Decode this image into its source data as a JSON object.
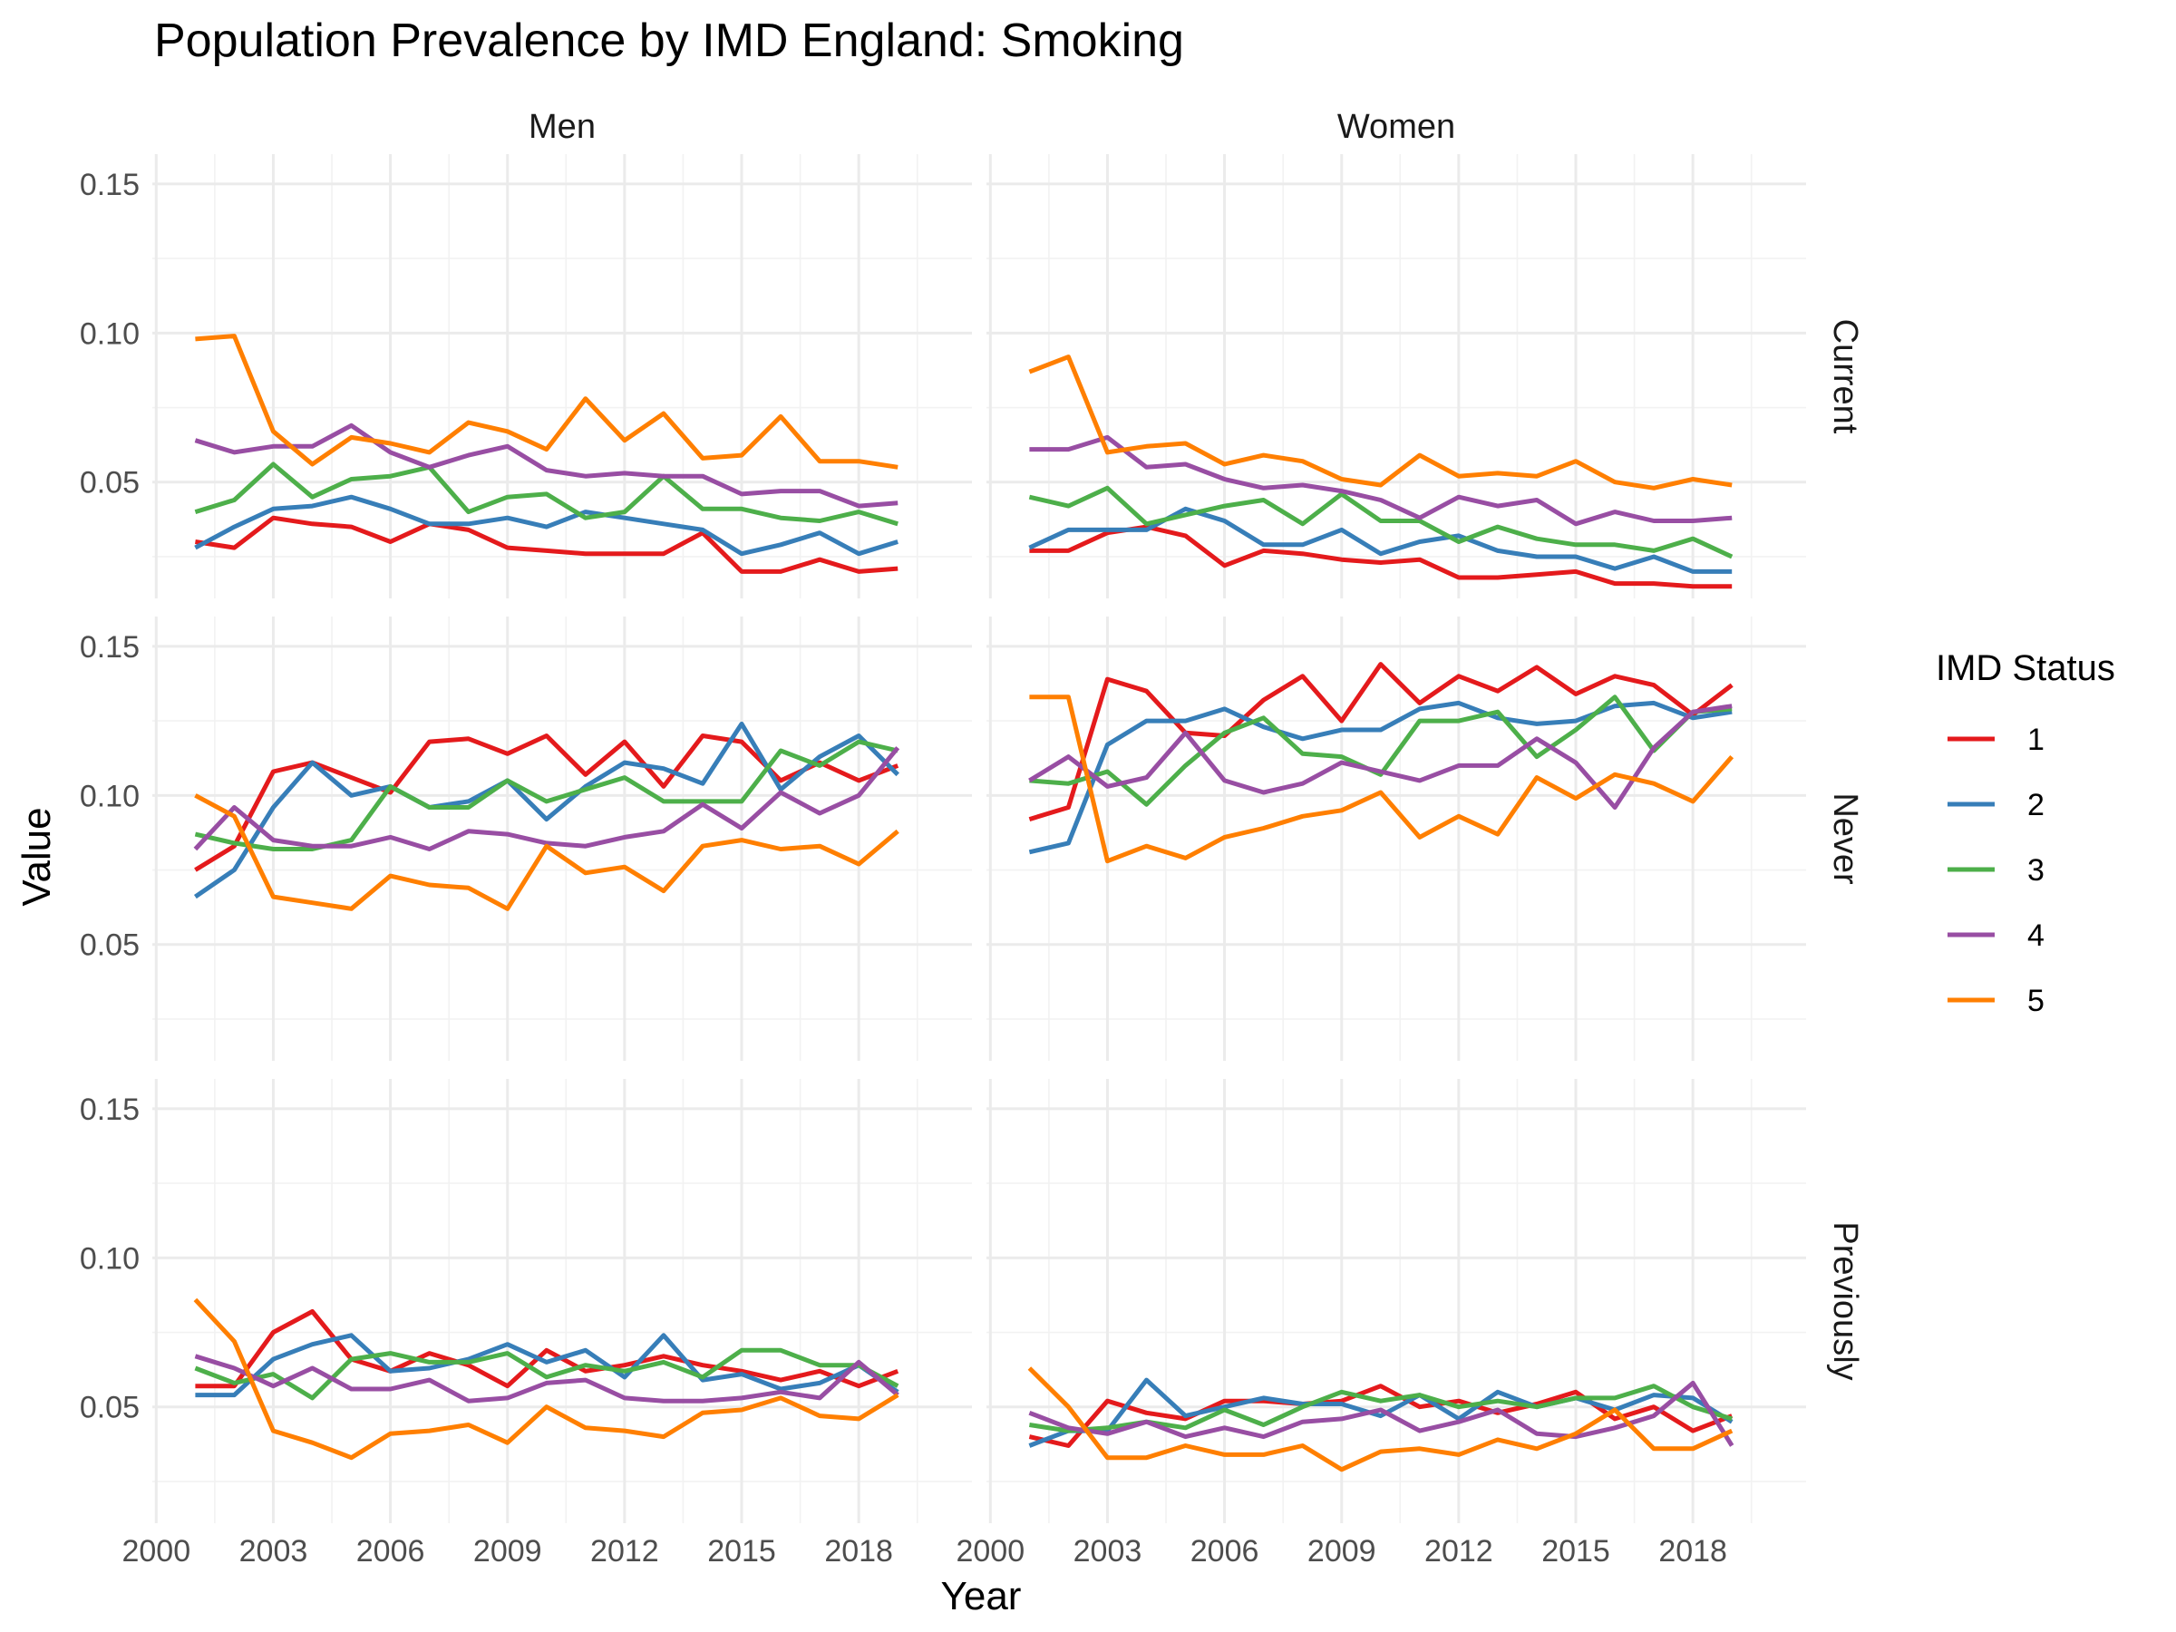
{
  "chart_data": {
    "type": "line",
    "title": "Population Prevalence by IMD England: Smoking",
    "xlabel": "Year",
    "ylabel": "Value",
    "legend_title": "IMD Status",
    "legend_position": "right",
    "facet_columns": [
      "Men",
      "Women"
    ],
    "facet_rows": [
      "Current",
      "Never",
      "Previously"
    ],
    "x_ticks": [
      "2000",
      "2003",
      "2006",
      "2009",
      "2012",
      "2015",
      "2018"
    ],
    "y_ticks": [
      "0.05",
      "0.10",
      "0.15"
    ],
    "xlim": [
      1999.9,
      2020.9
    ],
    "ylim": [
      0.011,
      0.16
    ],
    "grid": true,
    "x": [
      2001,
      2002,
      2003,
      2004,
      2005,
      2006,
      2007,
      2008,
      2009,
      2010,
      2011,
      2012,
      2013,
      2014,
      2015,
      2016,
      2017,
      2018,
      2019
    ],
    "series_colors": {
      "1": "#E41A1C",
      "2": "#377EB8",
      "3": "#4DAF4A",
      "4": "#984EA3",
      "5": "#FF7F00"
    },
    "legend": [
      {
        "label": "1",
        "color": "#E41A1C"
      },
      {
        "label": "2",
        "color": "#377EB8"
      },
      {
        "label": "3",
        "color": "#4DAF4A"
      },
      {
        "label": "4",
        "color": "#984EA3"
      },
      {
        "label": "5",
        "color": "#FF7F00"
      }
    ],
    "panels": [
      {
        "col": "Men",
        "row": "Current",
        "series": [
          {
            "name": "1",
            "values": [
              0.03,
              0.028,
              0.038,
              0.036,
              0.035,
              0.03,
              0.036,
              0.034,
              0.028,
              0.027,
              0.026,
              0.026,
              0.026,
              0.033,
              0.02,
              0.02,
              0.024,
              0.02,
              0.021
            ]
          },
          {
            "name": "2",
            "values": [
              0.028,
              0.035,
              0.041,
              0.042,
              0.045,
              0.041,
              0.036,
              0.036,
              0.038,
              0.035,
              0.04,
              0.038,
              0.036,
              0.034,
              0.026,
              0.029,
              0.033,
              0.026,
              0.03
            ]
          },
          {
            "name": "3",
            "values": [
              0.04,
              0.044,
              0.056,
              0.045,
              0.051,
              0.052,
              0.055,
              0.04,
              0.045,
              0.046,
              0.038,
              0.04,
              0.052,
              0.041,
              0.041,
              0.038,
              0.037,
              0.04,
              0.036
            ]
          },
          {
            "name": "4",
            "values": [
              0.064,
              0.06,
              0.062,
              0.062,
              0.069,
              0.06,
              0.055,
              0.059,
              0.062,
              0.054,
              0.052,
              0.053,
              0.052,
              0.052,
              0.046,
              0.047,
              0.047,
              0.042,
              0.043
            ]
          },
          {
            "name": "5",
            "values": [
              0.098,
              0.099,
              0.067,
              0.056,
              0.065,
              0.063,
              0.06,
              0.07,
              0.067,
              0.061,
              0.078,
              0.064,
              0.073,
              0.058,
              0.059,
              0.072,
              0.057,
              0.057,
              0.055
            ]
          }
        ]
      },
      {
        "col": "Women",
        "row": "Current",
        "series": [
          {
            "name": "1",
            "values": [
              0.027,
              0.027,
              0.033,
              0.035,
              0.032,
              0.022,
              0.027,
              0.026,
              0.024,
              0.023,
              0.024,
              0.018,
              0.018,
              0.019,
              0.02,
              0.016,
              0.016,
              0.015,
              0.015
            ]
          },
          {
            "name": "2",
            "values": [
              0.028,
              0.034,
              0.034,
              0.034,
              0.041,
              0.037,
              0.029,
              0.029,
              0.034,
              0.026,
              0.03,
              0.032,
              0.027,
              0.025,
              0.025,
              0.021,
              0.025,
              0.02,
              0.02
            ]
          },
          {
            "name": "3",
            "values": [
              0.045,
              0.042,
              0.048,
              0.036,
              0.039,
              0.042,
              0.044,
              0.036,
              0.046,
              0.037,
              0.037,
              0.03,
              0.035,
              0.031,
              0.029,
              0.029,
              0.027,
              0.031,
              0.025
            ]
          },
          {
            "name": "4",
            "values": [
              0.061,
              0.061,
              0.065,
              0.055,
              0.056,
              0.051,
              0.048,
              0.049,
              0.047,
              0.044,
              0.038,
              0.045,
              0.042,
              0.044,
              0.036,
              0.04,
              0.037,
              0.037,
              0.038
            ]
          },
          {
            "name": "5",
            "values": [
              0.087,
              0.092,
              0.06,
              0.062,
              0.063,
              0.056,
              0.059,
              0.057,
              0.051,
              0.049,
              0.059,
              0.052,
              0.053,
              0.052,
              0.057,
              0.05,
              0.048,
              0.051,
              0.049
            ]
          }
        ]
      },
      {
        "col": "Men",
        "row": "Never",
        "series": [
          {
            "name": "1",
            "values": [
              0.075,
              0.083,
              0.108,
              0.111,
              0.106,
              0.101,
              0.118,
              0.119,
              0.114,
              0.12,
              0.107,
              0.118,
              0.103,
              0.12,
              0.118,
              0.105,
              0.111,
              0.105,
              0.11
            ]
          },
          {
            "name": "2",
            "values": [
              0.066,
              0.075,
              0.096,
              0.111,
              0.1,
              0.103,
              0.096,
              0.098,
              0.105,
              0.092,
              0.103,
              0.111,
              0.109,
              0.104,
              0.124,
              0.102,
              0.113,
              0.12,
              0.107
            ]
          },
          {
            "name": "3",
            "values": [
              0.087,
              0.084,
              0.082,
              0.082,
              0.085,
              0.103,
              0.096,
              0.096,
              0.105,
              0.098,
              0.102,
              0.106,
              0.098,
              0.098,
              0.098,
              0.115,
              0.11,
              0.118,
              0.115
            ]
          },
          {
            "name": "4",
            "values": [
              0.082,
              0.096,
              0.085,
              0.083,
              0.083,
              0.086,
              0.082,
              0.088,
              0.087,
              0.084,
              0.083,
              0.086,
              0.088,
              0.097,
              0.089,
              0.101,
              0.094,
              0.1,
              0.116
            ]
          },
          {
            "name": "5",
            "values": [
              0.1,
              0.093,
              0.066,
              0.064,
              0.062,
              0.073,
              0.07,
              0.069,
              0.062,
              0.083,
              0.074,
              0.076,
              0.068,
              0.083,
              0.085,
              0.082,
              0.083,
              0.077,
              0.088
            ]
          }
        ]
      },
      {
        "col": "Women",
        "row": "Never",
        "series": [
          {
            "name": "1",
            "values": [
              0.092,
              0.096,
              0.139,
              0.135,
              0.121,
              0.12,
              0.132,
              0.14,
              0.125,
              0.144,
              0.131,
              0.14,
              0.135,
              0.143,
              0.134,
              0.14,
              0.137,
              0.127,
              0.137
            ]
          },
          {
            "name": "2",
            "values": [
              0.081,
              0.084,
              0.117,
              0.125,
              0.125,
              0.129,
              0.123,
              0.119,
              0.122,
              0.122,
              0.129,
              0.131,
              0.126,
              0.124,
              0.125,
              0.13,
              0.131,
              0.126,
              0.128
            ]
          },
          {
            "name": "3",
            "values": [
              0.105,
              0.104,
              0.108,
              0.097,
              0.11,
              0.121,
              0.126,
              0.114,
              0.113,
              0.107,
              0.125,
              0.125,
              0.128,
              0.113,
              0.122,
              0.133,
              0.115,
              0.128,
              0.129
            ]
          },
          {
            "name": "4",
            "values": [
              0.105,
              0.113,
              0.103,
              0.106,
              0.121,
              0.105,
              0.101,
              0.104,
              0.111,
              0.108,
              0.105,
              0.11,
              0.11,
              0.119,
              0.111,
              0.096,
              0.116,
              0.128,
              0.13
            ]
          },
          {
            "name": "5",
            "values": [
              0.133,
              0.133,
              0.078,
              0.083,
              0.079,
              0.086,
              0.089,
              0.093,
              0.095,
              0.101,
              0.086,
              0.093,
              0.087,
              0.106,
              0.099,
              0.107,
              0.104,
              0.098,
              0.113
            ]
          }
        ]
      },
      {
        "col": "Men",
        "row": "Previously",
        "series": [
          {
            "name": "1",
            "values": [
              0.057,
              0.057,
              0.075,
              0.082,
              0.066,
              0.062,
              0.068,
              0.064,
              0.057,
              0.069,
              0.062,
              0.064,
              0.067,
              0.064,
              0.062,
              0.059,
              0.062,
              0.057,
              0.062
            ]
          },
          {
            "name": "2",
            "values": [
              0.054,
              0.054,
              0.066,
              0.071,
              0.074,
              0.062,
              0.063,
              0.066,
              0.071,
              0.065,
              0.069,
              0.06,
              0.074,
              0.059,
              0.061,
              0.056,
              0.058,
              0.064,
              0.055
            ]
          },
          {
            "name": "3",
            "values": [
              0.063,
              0.058,
              0.061,
              0.053,
              0.066,
              0.068,
              0.065,
              0.065,
              0.068,
              0.06,
              0.064,
              0.062,
              0.065,
              0.06,
              0.069,
              0.069,
              0.064,
              0.064,
              0.057
            ]
          },
          {
            "name": "4",
            "values": [
              0.067,
              0.063,
              0.057,
              0.063,
              0.056,
              0.056,
              0.059,
              0.052,
              0.053,
              0.058,
              0.059,
              0.053,
              0.052,
              0.052,
              0.053,
              0.055,
              0.053,
              0.065,
              0.054
            ]
          },
          {
            "name": "5",
            "values": [
              0.086,
              0.072,
              0.042,
              0.038,
              0.033,
              0.041,
              0.042,
              0.044,
              0.038,
              0.05,
              0.043,
              0.042,
              0.04,
              0.048,
              0.049,
              0.053,
              0.047,
              0.046,
              0.054
            ]
          }
        ]
      },
      {
        "col": "Women",
        "row": "Previously",
        "series": [
          {
            "name": "1",
            "values": [
              0.04,
              0.037,
              0.052,
              0.048,
              0.046,
              0.052,
              0.052,
              0.051,
              0.052,
              0.057,
              0.05,
              0.052,
              0.048,
              0.051,
              0.055,
              0.046,
              0.05,
              0.042,
              0.047
            ]
          },
          {
            "name": "2",
            "values": [
              0.037,
              0.042,
              0.042,
              0.059,
              0.047,
              0.05,
              0.053,
              0.051,
              0.051,
              0.047,
              0.054,
              0.046,
              0.055,
              0.05,
              0.053,
              0.049,
              0.054,
              0.053,
              0.045
            ]
          },
          {
            "name": "3",
            "values": [
              0.044,
              0.042,
              0.043,
              0.045,
              0.043,
              0.049,
              0.044,
              0.05,
              0.055,
              0.052,
              0.054,
              0.05,
              0.052,
              0.05,
              0.053,
              0.053,
              0.057,
              0.05,
              0.046
            ]
          },
          {
            "name": "4",
            "values": [
              0.048,
              0.043,
              0.041,
              0.045,
              0.04,
              0.043,
              0.04,
              0.045,
              0.046,
              0.049,
              0.042,
              0.045,
              0.049,
              0.041,
              0.04,
              0.043,
              0.047,
              0.058,
              0.037
            ]
          },
          {
            "name": "5",
            "values": [
              0.063,
              0.05,
              0.033,
              0.033,
              0.037,
              0.034,
              0.034,
              0.037,
              0.029,
              0.035,
              0.036,
              0.034,
              0.039,
              0.036,
              0.041,
              0.049,
              0.036,
              0.036,
              0.042
            ]
          }
        ]
      }
    ]
  }
}
